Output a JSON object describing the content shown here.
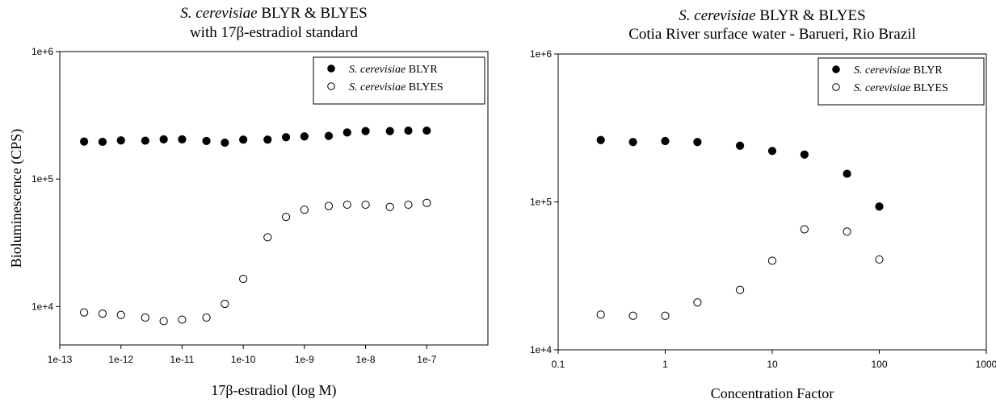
{
  "chart_data": [
    {
      "type": "scatter",
      "title_italic": "S. cerevisiae",
      "title_rest": " BLYR & BLYES",
      "subtitle": "with 17β-estradiol standard",
      "xlabel": "17β-estradiol (log M)",
      "ylabel": "Bioluminescence (CPS)",
      "x_scale": "log",
      "y_scale": "log",
      "xlim": [
        1e-13,
        1e-06
      ],
      "ylim": [
        5000,
        1000000
      ],
      "x_ticks": [
        1e-13,
        1e-12,
        1e-11,
        1e-10,
        1e-09,
        1e-08,
        1e-07
      ],
      "x_tick_labels": [
        "1e-13",
        "1e-12",
        "1e-11",
        "1e-10",
        "1e-9",
        "1e-8",
        "1e-7"
      ],
      "y_ticks": [
        10000,
        100000,
        1000000
      ],
      "y_tick_labels": [
        "1e+4",
        "1e+5",
        "1e+6"
      ],
      "legend_position": "top-right",
      "series": [
        {
          "name_italic": "S. cerevisiae",
          "name_rest": " BLYR",
          "marker": "filled-circle",
          "x": [
            2.5e-13,
            5e-13,
            1e-12,
            2.5e-12,
            5e-12,
            1e-11,
            2.5e-11,
            5e-11,
            1e-10,
            2.5e-10,
            5e-10,
            1e-09,
            2.5e-09,
            5e-09,
            1e-08,
            2.5e-08,
            5e-08,
            1e-07
          ],
          "y": [
            197000,
            196000,
            201000,
            200000,
            205000,
            205000,
            199000,
            193000,
            204000,
            204000,
            213000,
            216000,
            218000,
            232000,
            238000,
            238000,
            240000,
            240000
          ]
        },
        {
          "name_italic": "S. cerevisiae",
          "name_rest": " BLYES",
          "marker": "open-circle",
          "x": [
            2.5e-13,
            5e-13,
            1e-12,
            2.5e-12,
            5e-12,
            1e-11,
            2.5e-11,
            5e-11,
            1e-10,
            2.5e-10,
            5e-10,
            1e-09,
            2.5e-09,
            5e-09,
            1e-08,
            2.5e-08,
            5e-08,
            1e-07
          ],
          "y": [
            9000,
            8800,
            8600,
            8200,
            7700,
            7900,
            8200,
            10500,
            16500,
            35000,
            50500,
            57500,
            61500,
            63000,
            63000,
            60500,
            63000,
            65000
          ]
        }
      ]
    },
    {
      "type": "scatter",
      "title_italic": "S. cerevisiae",
      "title_rest": " BLYR & BLYES",
      "subtitle": "Cotia River surface water - Barueri, Rio Brazil",
      "xlabel": "Concentration Factor",
      "ylabel": "",
      "x_scale": "log",
      "y_scale": "log",
      "xlim": [
        0.1,
        1000
      ],
      "ylim": [
        10000,
        1000000
      ],
      "x_ticks": [
        0.1,
        1,
        10,
        100,
        1000
      ],
      "x_tick_labels": [
        "0.1",
        "1",
        "10",
        "100",
        "1000"
      ],
      "y_ticks": [
        10000,
        100000,
        1000000
      ],
      "y_tick_labels": [
        "1e+4",
        "1e+5",
        "1e+6"
      ],
      "legend_position": "top-right",
      "series": [
        {
          "name_italic": "S. cerevisiae",
          "name_rest": " BLYR",
          "marker": "filled-circle",
          "x": [
            0.25,
            0.5,
            1,
            2,
            5,
            10,
            20,
            50,
            100
          ],
          "y": [
            262000,
            254000,
            258000,
            254000,
            240000,
            221000,
            209000,
            155000,
            93000
          ]
        },
        {
          "name_italic": "S. cerevisiae",
          "name_rest": " BLYES",
          "marker": "open-circle",
          "x": [
            0.25,
            0.5,
            1,
            2,
            5,
            10,
            20,
            50,
            100
          ],
          "y": [
            17300,
            17000,
            17000,
            20900,
            25400,
            40000,
            65300,
            63000,
            40800
          ]
        }
      ]
    }
  ]
}
